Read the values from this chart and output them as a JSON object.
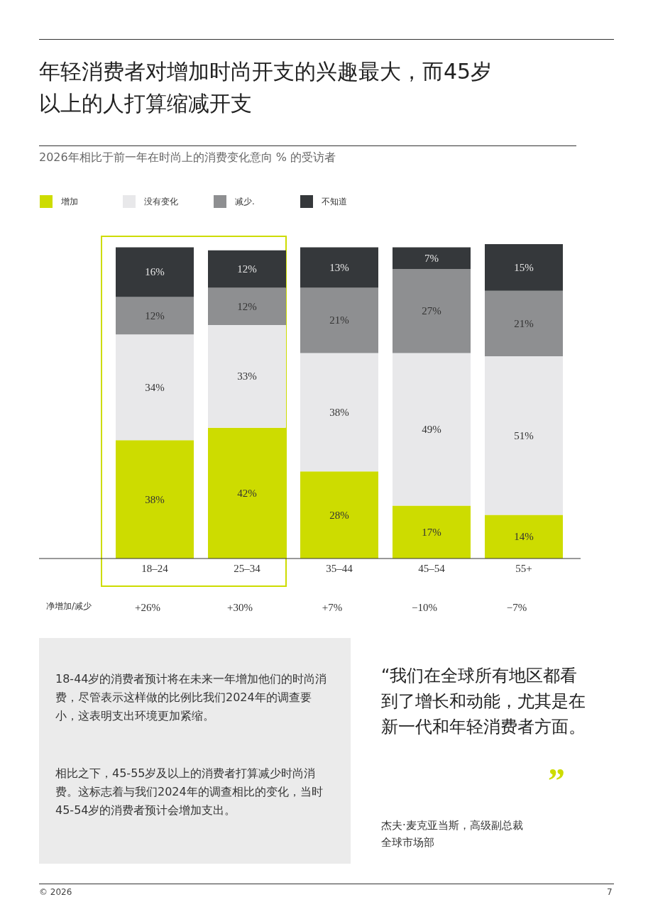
{
  "chart_data": {
    "type": "bar",
    "title": "年轻消费者对增加时尚开支的兴趣最大，而45岁以上的人打算缩减开支",
    "subtitle": "2026年相比于前一年在时尚上的消费变化意向 % 的受访者",
    "categories": [
      "18–24",
      "25–34",
      "35–44",
      "45–54",
      "55+"
    ],
    "stacked": true,
    "legend": "top left",
    "series": [
      {
        "name": "增加",
        "color": "#cddc00",
        "values": [
          38,
          42,
          28,
          17,
          14
        ],
        "value_labels": [
          "38%",
          "42%",
          "28%",
          "17%",
          "14%"
        ]
      },
      {
        "name": "没有变化",
        "color": "#e8e8ea",
        "values": [
          34,
          33,
          38,
          49,
          51
        ],
        "value_labels": [
          "34%",
          "33%",
          "38%",
          "49%",
          "51%"
        ]
      },
      {
        "name": "减少.",
        "color": "#8e8f91",
        "values": [
          12,
          12,
          21,
          27,
          21
        ],
        "value_labels": [
          "12%",
          "12%",
          "21%",
          "27%",
          "21%"
        ]
      },
      {
        "name": "不知道",
        "color": "#35383b",
        "values": [
          16,
          12,
          13,
          7,
          15
        ],
        "value_labels": [
          "16%",
          "12%",
          "13%",
          "7%",
          "15%"
        ]
      }
    ],
    "annotations": [
      "净增加/减少",
      "+26%",
      "+30%",
      "+7%",
      "−10%",
      "−7%",
      "18-44岁的消费者预计将在未来一年增加他们的时尚消费，尽管表示这样做的比例比我们2024年的调查要小，这表明支出环境更加紧缩。",
      "相比之下，45-55岁及以上的消费者打算减少时尚消费。这标志着与我们2024年的调查相比的变化，当时45-54岁的消费者预计会增加支出。",
      "“我们在全球所有地区都看到了增长和动能，尤其是在新一代和年轻消费者方面。",
      "”",
      "杰夫·麦克亚当斯，高级副总裁",
      "全球市场部",
      "© 2026",
      "7"
    ]
  }
}
